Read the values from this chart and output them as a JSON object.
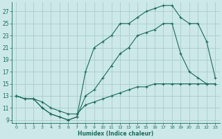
{
  "xlabel": "Humidex (Indice chaleur)",
  "bg_color": "#cce8e8",
  "grid_color": "#aacccc",
  "line_color": "#1a6b5a",
  "xlim": [
    -0.5,
    23.5
  ],
  "ylim": [
    8.5,
    28.5
  ],
  "xticks": [
    0,
    1,
    2,
    3,
    4,
    5,
    6,
    7,
    8,
    9,
    10,
    11,
    12,
    13,
    14,
    15,
    16,
    17,
    18,
    19,
    20,
    21,
    22,
    23
  ],
  "yticks": [
    9,
    11,
    13,
    15,
    17,
    19,
    21,
    23,
    25,
    27
  ],
  "line1_x": [
    0,
    1,
    2,
    3,
    4,
    5,
    6,
    7,
    8,
    9,
    10,
    11,
    12,
    13,
    14,
    15,
    16,
    17,
    18,
    19,
    20,
    21,
    22,
    23
  ],
  "line1_y": [
    13,
    12.5,
    12.5,
    11,
    10,
    9.5,
    9,
    9.5,
    17,
    21,
    22,
    23,
    25,
    25,
    26,
    27,
    27.5,
    28,
    28,
    26,
    25,
    25,
    22,
    16
  ],
  "line2_x": [
    0,
    1,
    2,
    3,
    4,
    5,
    6,
    7,
    8,
    9,
    10,
    11,
    12,
    13,
    14,
    15,
    16,
    17,
    18,
    19,
    20,
    21,
    22,
    23
  ],
  "line2_y": [
    13,
    12.5,
    12.5,
    11,
    10,
    9.5,
    9,
    9.5,
    13,
    14,
    16,
    18,
    20,
    21,
    23,
    23.5,
    24,
    25,
    25,
    20,
    17,
    16,
    15,
    15
  ],
  "line3_x": [
    0,
    1,
    2,
    3,
    4,
    5,
    6,
    7,
    8,
    9,
    10,
    11,
    12,
    13,
    14,
    15,
    16,
    17,
    18,
    19,
    20,
    21,
    22,
    23
  ],
  "line3_y": [
    13,
    12.5,
    12.5,
    12,
    11,
    10.5,
    10,
    10,
    11.5,
    12,
    12.5,
    13,
    13.5,
    14,
    14.5,
    14.5,
    15,
    15,
    15,
    15,
    15,
    15,
    15,
    15
  ]
}
